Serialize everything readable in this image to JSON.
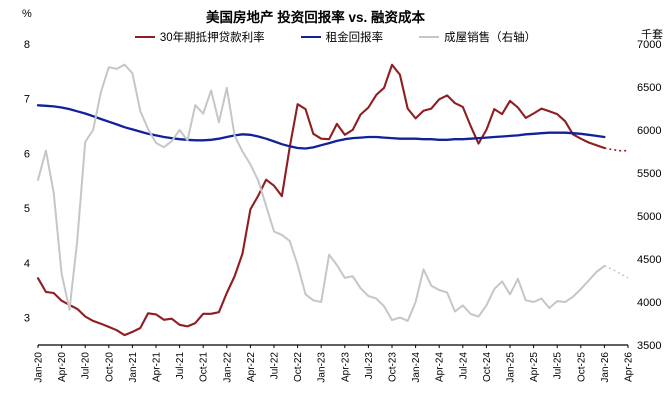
{
  "title": "美国房地产 投资回报率 vs. 融资成本",
  "left_axis_unit": "%",
  "right_axis_unit": "千套",
  "legend": [
    {
      "label": "30年期抵押贷款利率",
      "color": "#8F1D21"
    },
    {
      "label": "租金回报率",
      "color": "#10219B"
    },
    {
      "label": "成屋销售（右轴）",
      "color": "#C6C6C6"
    }
  ],
  "chart_data": {
    "type": "line",
    "title": "美国房地产 投资回报率 vs. 融资成本",
    "months_total": 76,
    "x_labels": [
      "Jan-20",
      "Apr-20",
      "Jul-20",
      "Oct-20",
      "Jan-21",
      "Apr-21",
      "Jul-21",
      "Oct-21",
      "Jan-22",
      "Apr-22",
      "Jul-22",
      "Oct-22",
      "Jan-23",
      "Apr-23",
      "Jul-23",
      "Oct-23",
      "Jan-24",
      "Apr-24",
      "Jul-24",
      "Oct-24",
      "Jan-25",
      "Apr-25",
      "Jul-25",
      "Oct-25",
      "Jan-26",
      "Apr-26"
    ],
    "left_axis": {
      "min": 2.5,
      "max": 8,
      "ticks": [
        3,
        4,
        5,
        6,
        7,
        8
      ],
      "unit": "%"
    },
    "right_axis": {
      "min": 3500,
      "max": 7000,
      "ticks": [
        3500,
        4000,
        4500,
        5000,
        5500,
        6000,
        6500,
        7000
      ],
      "unit": "千套"
    },
    "series": [
      {
        "name": "30年期抵押贷款利率",
        "axis": "left",
        "color": "#8F1D21",
        "width": 2.1,
        "values": [
          3.72,
          3.47,
          3.45,
          3.31,
          3.23,
          3.16,
          3.02,
          2.94,
          2.89,
          2.83,
          2.77,
          2.68,
          2.74,
          2.81,
          3.08,
          3.06,
          2.96,
          2.98,
          2.87,
          2.84,
          2.9,
          3.07,
          3.07,
          3.1,
          3.45,
          3.76,
          4.17,
          4.98,
          5.23,
          5.52,
          5.41,
          5.22,
          6.11,
          6.9,
          6.81,
          6.36,
          6.27,
          6.26,
          6.54,
          6.34,
          6.43,
          6.71,
          6.84,
          7.07,
          7.2,
          7.62,
          7.44,
          6.82,
          6.64,
          6.78,
          6.82,
          6.99,
          7.06,
          6.92,
          6.85,
          6.5,
          6.18,
          6.43,
          6.81,
          6.72,
          6.96,
          6.84,
          6.65,
          6.73,
          6.82,
          6.77,
          6.72,
          6.59,
          6.35,
          6.27,
          6.2,
          6.15,
          6.1
        ],
        "forecast": [
          6.07,
          6.05,
          6.05
        ]
      },
      {
        "name": "租金回报率",
        "axis": "left",
        "color": "#10219B",
        "width": 2.3,
        "values": [
          6.88,
          6.87,
          6.86,
          6.84,
          6.81,
          6.77,
          6.73,
          6.68,
          6.63,
          6.58,
          6.53,
          6.48,
          6.44,
          6.4,
          6.36,
          6.33,
          6.3,
          6.28,
          6.26,
          6.25,
          6.24,
          6.24,
          6.25,
          6.27,
          6.3,
          6.33,
          6.35,
          6.34,
          6.31,
          6.27,
          6.22,
          6.17,
          6.13,
          6.1,
          6.09,
          6.11,
          6.15,
          6.19,
          6.23,
          6.26,
          6.28,
          6.29,
          6.3,
          6.3,
          6.29,
          6.28,
          6.27,
          6.27,
          6.27,
          6.26,
          6.26,
          6.25,
          6.25,
          6.26,
          6.26,
          6.27,
          6.28,
          6.29,
          6.3,
          6.31,
          6.32,
          6.33,
          6.35,
          6.36,
          6.37,
          6.38,
          6.38,
          6.38,
          6.37,
          6.36,
          6.34,
          6.32,
          6.3
        ]
      },
      {
        "name": "成屋销售（右轴）",
        "axis": "right",
        "color": "#C6C6C6",
        "width": 2,
        "values": [
          5420,
          5760,
          5270,
          4330,
          3910,
          4720,
          5860,
          6000,
          6440,
          6730,
          6710,
          6760,
          6660,
          6220,
          6010,
          5850,
          5800,
          5870,
          6000,
          5880,
          6290,
          6190,
          6460,
          6090,
          6490,
          5930,
          5750,
          5600,
          5410,
          5120,
          4820,
          4780,
          4710,
          4430,
          4090,
          4020,
          4000,
          4550,
          4430,
          4280,
          4300,
          4160,
          4070,
          4040,
          3950,
          3790,
          3820,
          3780,
          4000,
          4380,
          4190,
          4140,
          4110,
          3890,
          3960,
          3860,
          3830,
          3960,
          4150,
          4240,
          4090,
          4270,
          4020,
          4000,
          4040,
          3930,
          4010,
          4000,
          4060,
          4150,
          4250,
          4350,
          4420
        ],
        "forecast": [
          4380,
          4330,
          4280
        ]
      }
    ]
  }
}
